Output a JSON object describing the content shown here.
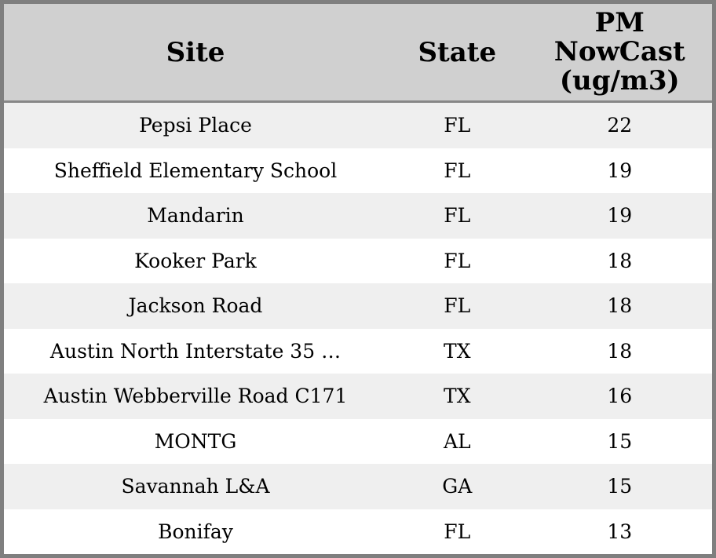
{
  "chart_data": {
    "type": "table",
    "title": "",
    "columns": [
      "Site",
      "State",
      "PM NowCast (ug/m3)"
    ],
    "rows": [
      [
        "Pepsi Place",
        "FL",
        22
      ],
      [
        "Sheffield Elementary School",
        "FL",
        19
      ],
      [
        "Mandarin",
        "FL",
        19
      ],
      [
        "Kooker Park",
        "FL",
        18
      ],
      [
        "Jackson Road",
        "FL",
        18
      ],
      [
        "Austin North Interstate 35 …",
        "TX",
        18
      ],
      [
        "Austin Webberville Road C171",
        "TX",
        16
      ],
      [
        "MONTG",
        "AL",
        15
      ],
      [
        "Savannah L&A",
        "GA",
        15
      ],
      [
        "Bonifay",
        "FL",
        13
      ]
    ]
  },
  "display": {
    "header": {
      "site": "Site",
      "state": "State",
      "pm": "PM\nNowCast\n(ug/m3)"
    }
  },
  "colors": {
    "header_bg": "#d0d0d0",
    "stripe_bg": "#efefef",
    "row_bg": "#ffffff",
    "border": "#7f7f7f",
    "header_divider": "#878787",
    "text": "#000000"
  }
}
